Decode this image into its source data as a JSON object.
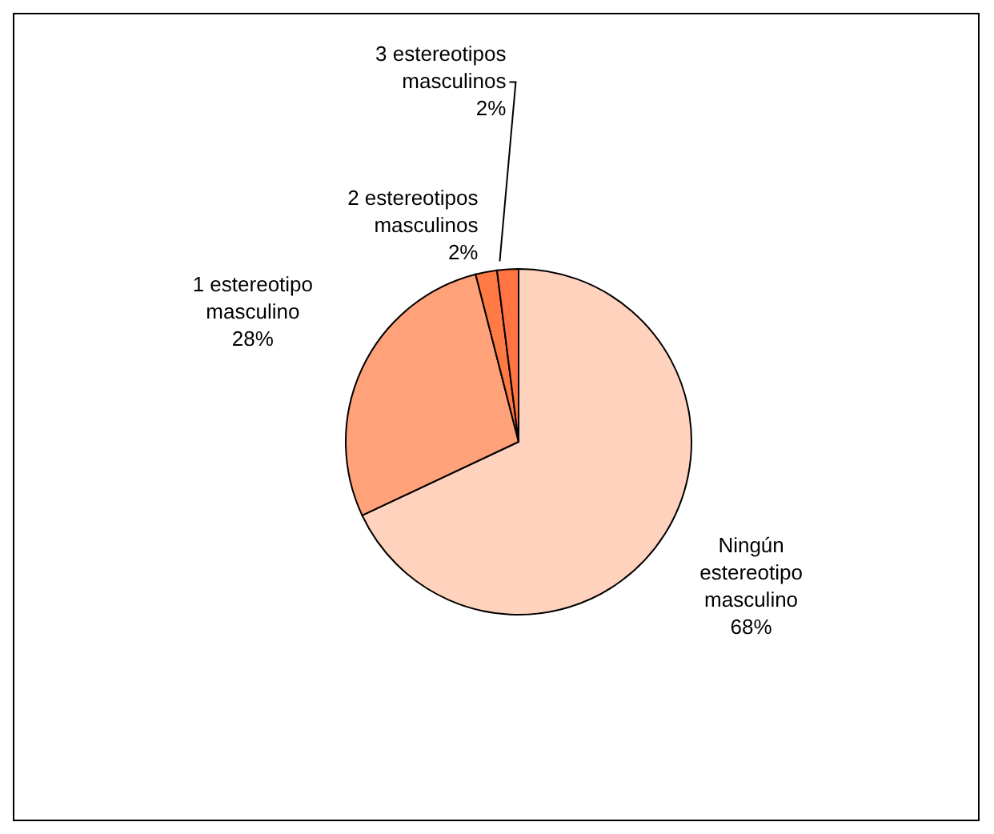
{
  "chart_data": {
    "type": "pie",
    "categories": [
      "Ningún estereotipo masculino",
      "1 estereotipo masculino",
      "2 estereotipos masculinos",
      "3 estereotipos masculinos"
    ],
    "values": [
      68,
      28,
      2,
      2
    ],
    "value_labels": [
      "68%",
      "28%",
      "2%",
      "2%"
    ],
    "colors": [
      "#ffd2bd",
      "#ffa27a",
      "#ff7a45",
      "#ff7442"
    ]
  }
}
